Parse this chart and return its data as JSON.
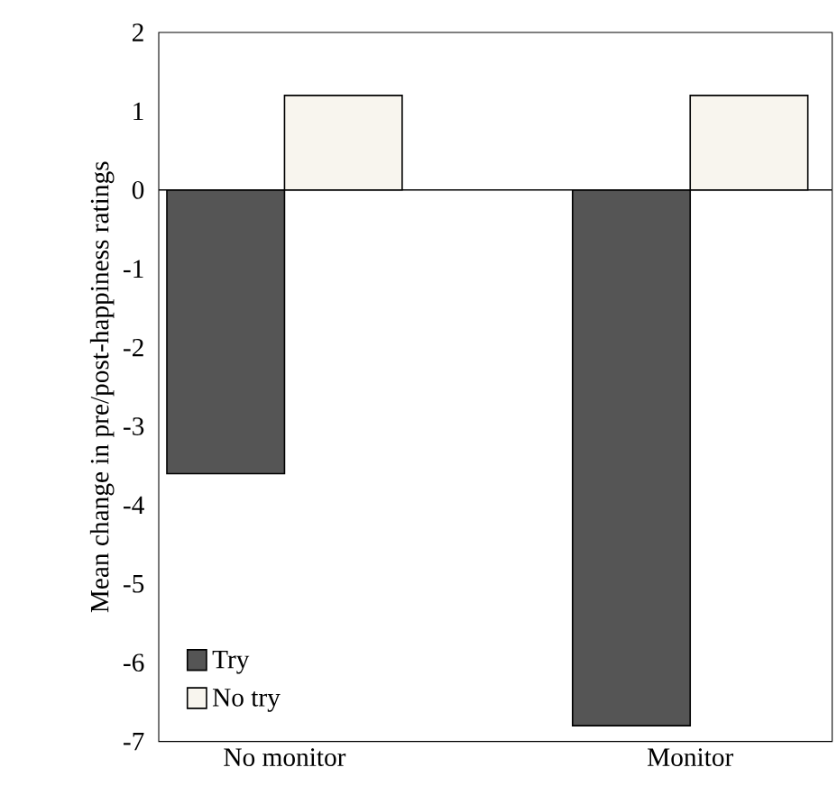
{
  "chart_data": {
    "type": "bar",
    "ylabel": "Mean change in pre/post-happiness ratings",
    "categories": [
      "No monitor",
      "Monitor"
    ],
    "series": [
      {
        "name": "Try",
        "color": "#555555",
        "values": [
          -3.6,
          -6.8
        ]
      },
      {
        "name": "No try",
        "color": "#f8f5ee",
        "values": [
          1.2,
          1.2
        ]
      }
    ],
    "ylim": [
      -7,
      2
    ],
    "yticks": [
      -7,
      -6,
      -5,
      -4,
      -3,
      -2,
      -1,
      0,
      1,
      2
    ],
    "legend": "bottom left"
  }
}
